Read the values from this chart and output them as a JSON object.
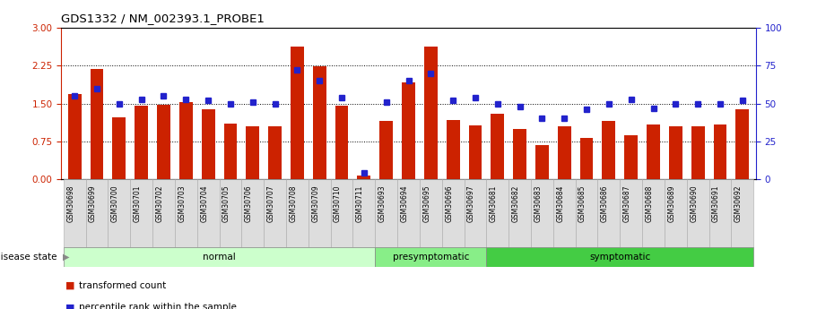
{
  "title": "GDS1332 / NM_002393.1_PROBE1",
  "samples": [
    "GSM30698",
    "GSM30699",
    "GSM30700",
    "GSM30701",
    "GSM30702",
    "GSM30703",
    "GSM30704",
    "GSM30705",
    "GSM30706",
    "GSM30707",
    "GSM30708",
    "GSM30709",
    "GSM30710",
    "GSM30711",
    "GSM30693",
    "GSM30694",
    "GSM30695",
    "GSM30696",
    "GSM30697",
    "GSM30681",
    "GSM30682",
    "GSM30683",
    "GSM30684",
    "GSM30685",
    "GSM30686",
    "GSM30687",
    "GSM30688",
    "GSM30689",
    "GSM30690",
    "GSM30691",
    "GSM30692"
  ],
  "transformed_count": [
    1.68,
    2.18,
    1.22,
    1.45,
    1.48,
    1.52,
    1.38,
    1.1,
    1.05,
    1.05,
    2.62,
    2.24,
    1.45,
    0.07,
    1.15,
    1.92,
    2.62,
    1.18,
    1.06,
    1.3,
    1.0,
    0.68,
    1.05,
    0.82,
    1.15,
    0.88,
    1.08,
    1.05,
    1.05,
    1.08,
    1.38
  ],
  "percentile_rank": [
    55,
    60,
    50,
    53,
    55,
    53,
    52,
    50,
    51,
    50,
    72,
    65,
    54,
    4,
    51,
    65,
    70,
    52,
    54,
    50,
    48,
    40,
    40,
    46,
    50,
    53,
    47,
    50,
    50,
    50,
    52
  ],
  "groups": [
    {
      "label": "normal",
      "start": 0,
      "end": 14,
      "color": "#ccffcc"
    },
    {
      "label": "presymptomatic",
      "start": 14,
      "end": 19,
      "color": "#88ee88"
    },
    {
      "label": "symptomatic",
      "start": 19,
      "end": 31,
      "color": "#44cc44"
    }
  ],
  "bar_color": "#cc2200",
  "marker_color": "#2222cc",
  "ylim_left": [
    0,
    3
  ],
  "ylim_right": [
    0,
    100
  ],
  "yticks_left": [
    0,
    0.75,
    1.5,
    2.25,
    3
  ],
  "yticks_right": [
    0,
    25,
    50,
    75,
    100
  ],
  "hlines": [
    0.75,
    1.5,
    2.25
  ],
  "legend_items": [
    "transformed count",
    "percentile rank within the sample"
  ],
  "disease_state_label": "disease state",
  "background_color": "#ffffff",
  "tick_bg_color": "#dddddd"
}
